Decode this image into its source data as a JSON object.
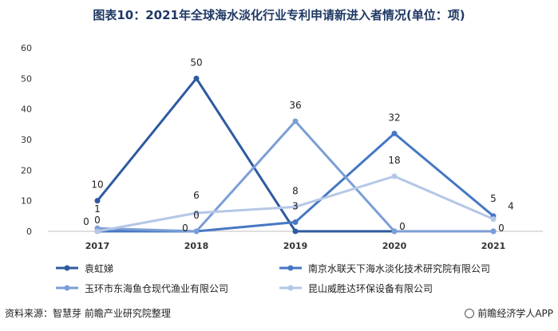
{
  "title": "图表10：2021年全球海水淡化行业专利申请新进入者情况(单位：项)",
  "footer": {
    "source": "资料来源：智慧芽 前瞻产业研究院整理",
    "brand": "前瞻经济学人APP"
  },
  "chart_data": {
    "type": "line",
    "x": [
      "2017",
      "2018",
      "2019",
      "2020",
      "2021"
    ],
    "yticks": [
      "0",
      "10",
      "20",
      "30",
      "40",
      "50",
      "60"
    ],
    "ylim": [
      0,
      60
    ],
    "grid": false,
    "legend_position": "bottom",
    "series": [
      {
        "name": "袁虹娣",
        "color": "#2e5aa0",
        "values": [
          10,
          50,
          0,
          0,
          0
        ],
        "labels": [
          "10",
          "50",
          "0",
          "0",
          "0"
        ]
      },
      {
        "name": "南京水联天下海水淡化技术研究院有限公司",
        "color": "#4677c4",
        "values": [
          0,
          0,
          3,
          32,
          5
        ],
        "labels": [
          "0",
          "0",
          "3",
          "32",
          "5"
        ]
      },
      {
        "name": "玉环市东海鱼仓现代渔业有限公司",
        "color": "#7b9ed6",
        "values": [
          1,
          0,
          36,
          0,
          0
        ],
        "labels": [
          "1",
          "0",
          "36",
          "0",
          "0"
        ]
      },
      {
        "name": "昆山威胜达环保设备有限公司",
        "color": "#b4c7e7",
        "values": [
          0,
          6,
          8,
          18,
          4
        ],
        "labels": [
          "0",
          "6",
          "8",
          "18",
          "4"
        ]
      }
    ]
  }
}
